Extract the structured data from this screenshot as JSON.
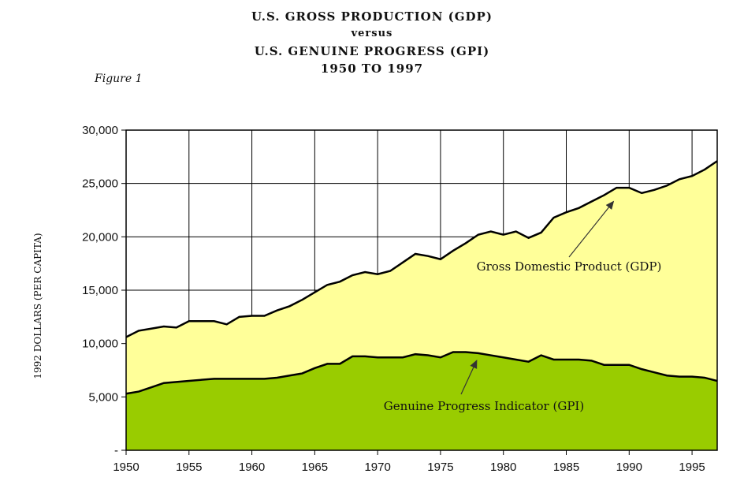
{
  "chart_data": {
    "type": "area",
    "title_lines": [
      "U.S. GROSS PRODUCTION (GDP)",
      "versus",
      "U.S. GENUINE PROGRESS (GPI)",
      "1950 TO 1997"
    ],
    "figure_label": "Figure 1",
    "xlabel": "",
    "ylabel": "1992 DOLLARS (PER CAPITA)",
    "xlim": [
      1950,
      1997
    ],
    "ylim": [
      0,
      30000
    ],
    "x_ticks": [
      "1950",
      "1955",
      "1960",
      "1965",
      "1970",
      "1975",
      "1980",
      "1985",
      "1990",
      "1995"
    ],
    "y_ticks": [
      "-",
      "5,000",
      "10,000",
      "15,000",
      "20,000",
      "25,000",
      "30,000"
    ],
    "grid": true,
    "x": [
      1950,
      1951,
      1952,
      1953,
      1954,
      1955,
      1956,
      1957,
      1958,
      1959,
      1960,
      1961,
      1962,
      1963,
      1964,
      1965,
      1966,
      1967,
      1968,
      1969,
      1970,
      1971,
      1972,
      1973,
      1974,
      1975,
      1976,
      1977,
      1978,
      1979,
      1980,
      1981,
      1982,
      1983,
      1984,
      1985,
      1986,
      1987,
      1988,
      1989,
      1990,
      1991,
      1992,
      1993,
      1994,
      1995,
      1996,
      1997
    ],
    "series": [
      {
        "name": "Gross Domestic Product (GDP)",
        "color": "#ffff99",
        "values": [
          10600,
          11200,
          11400,
          11600,
          11500,
          12100,
          12100,
          12100,
          11800,
          12500,
          12600,
          12600,
          13100,
          13500,
          14100,
          14800,
          15500,
          15800,
          16400,
          16700,
          16500,
          16800,
          17600,
          18400,
          18200,
          17900,
          18700,
          19400,
          20200,
          20500,
          20200,
          20500,
          19900,
          20400,
          21800,
          22300,
          22700,
          23300,
          23900,
          24600,
          24600,
          24100,
          24400,
          24800,
          25400,
          25700,
          26300,
          27100
        ]
      },
      {
        "name": "Genuine Progress Indicator (GPI)",
        "color": "#99cc00",
        "values": [
          5300,
          5500,
          5900,
          6300,
          6400,
          6500,
          6600,
          6700,
          6700,
          6700,
          6700,
          6700,
          6800,
          7000,
          7200,
          7700,
          8100,
          8100,
          8800,
          8800,
          8700,
          8700,
          8700,
          9000,
          8900,
          8700,
          9200,
          9200,
          9100,
          8900,
          8700,
          8500,
          8300,
          8900,
          8500,
          8500,
          8500,
          8400,
          8000,
          8000,
          8000,
          7600,
          7300,
          7000,
          6900,
          6900,
          6800,
          6500
        ]
      }
    ],
    "annotations": [
      {
        "text": "Gross Domestic Product (GDP)",
        "points_to": [
          1988,
          23900
        ]
      },
      {
        "text": "Genuine Progress Indicator (GPI)",
        "points_to": [
          1978,
          9000
        ]
      }
    ]
  }
}
